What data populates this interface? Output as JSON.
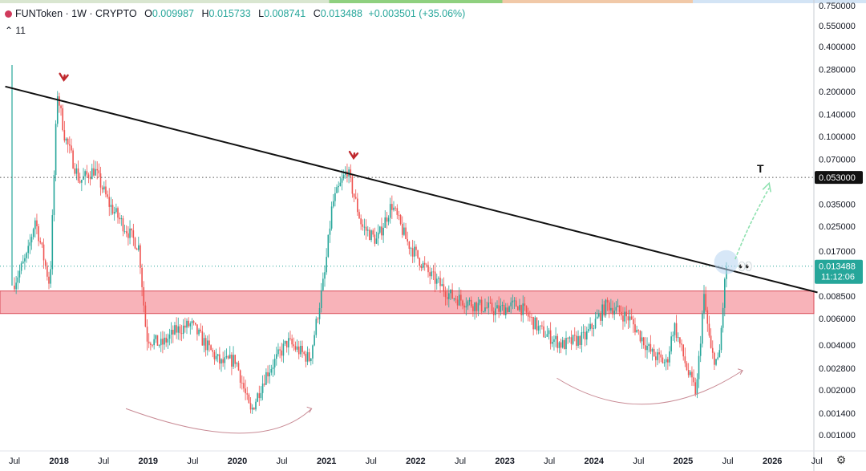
{
  "header": {
    "symbol_line": "FUNToken · 1W · CRYPTO",
    "open_label": "O",
    "open": "0.009987",
    "high_label": "H",
    "high": "0.015733",
    "low_label": "L",
    "low": "0.008741",
    "close_label": "C",
    "close": "0.013488",
    "change": "+0.003501 (+35.06%)",
    "indicator_count": "11"
  },
  "colors": {
    "up": "#26a69a",
    "down": "#ef5350",
    "zone": "#f7a6ad",
    "arrow": "#c0282d",
    "target": "#2ea58c"
  },
  "annotations": {
    "target_label": "T",
    "emoji": "👀"
  },
  "axis": {
    "settings_icon": "gear-icon"
  },
  "chart_data": {
    "type": "candlestick",
    "scale": "log",
    "ylim": [
      0.0008,
      0.75
    ],
    "y_ticks": [
      "0.750000",
      "0.550000",
      "0.400000",
      "0.280000",
      "0.200000",
      "0.140000",
      "0.100000",
      "0.070000",
      "0.053000",
      "0.035000",
      "0.025000",
      "0.017000",
      "0.013488",
      "0.008500",
      "0.006000",
      "0.004000",
      "0.002800",
      "0.002000",
      "0.001400",
      "0.001000"
    ],
    "y_tick_values": [
      0.75,
      0.55,
      0.4,
      0.28,
      0.2,
      0.14,
      0.1,
      0.07,
      0.053,
      0.035,
      0.025,
      0.017,
      0.013488,
      0.0085,
      0.006,
      0.004,
      0.0028,
      0.002,
      0.0014,
      0.001
    ],
    "x_ticks": [
      "Jul",
      "2018",
      "Jul",
      "2019",
      "Jul",
      "2020",
      "Jul",
      "2021",
      "Jul",
      "2022",
      "Jul",
      "2023",
      "Jul",
      "2024",
      "Jul",
      "2025",
      "Jul",
      "2026",
      "Jul"
    ],
    "x_tick_dates": [
      "2017-07",
      "2018-01",
      "2018-07",
      "2019-01",
      "2019-07",
      "2020-01",
      "2020-07",
      "2021-01",
      "2021-07",
      "2022-01",
      "2022-07",
      "2023-01",
      "2023-07",
      "2024-01",
      "2024-07",
      "2025-01",
      "2025-07",
      "2026-01",
      "2026-07"
    ],
    "price_points": [
      [
        "2017-07",
        0.01
      ],
      [
        "2017-09",
        0.016
      ],
      [
        "2017-10",
        0.028
      ],
      [
        "2017-12",
        0.01
      ],
      [
        "2018-01",
        0.2
      ],
      [
        "2018-02",
        0.1
      ],
      [
        "2018-04",
        0.05
      ],
      [
        "2018-06",
        0.06
      ],
      [
        "2018-08",
        0.035
      ],
      [
        "2018-10",
        0.025
      ],
      [
        "2018-12",
        0.018
      ],
      [
        "2019-01",
        0.0045
      ],
      [
        "2019-03",
        0.004
      ],
      [
        "2019-05",
        0.005
      ],
      [
        "2019-07",
        0.0055
      ],
      [
        "2019-09",
        0.004
      ],
      [
        "2019-11",
        0.003
      ],
      [
        "2020-01",
        0.0032
      ],
      [
        "2020-03",
        0.0014
      ],
      [
        "2020-05",
        0.0025
      ],
      [
        "2020-08",
        0.0042
      ],
      [
        "2020-11",
        0.0032
      ],
      [
        "2021-01",
        0.012
      ],
      [
        "2021-02",
        0.035
      ],
      [
        "2021-04",
        0.06
      ],
      [
        "2021-06",
        0.025
      ],
      [
        "2021-08",
        0.02
      ],
      [
        "2021-10",
        0.035
      ],
      [
        "2021-12",
        0.02
      ],
      [
        "2022-03",
        0.012
      ],
      [
        "2022-06",
        0.0085
      ],
      [
        "2022-09",
        0.0075
      ],
      [
        "2022-12",
        0.0068
      ],
      [
        "2023-03",
        0.0075
      ],
      [
        "2023-06",
        0.005
      ],
      [
        "2023-09",
        0.004
      ],
      [
        "2023-12",
        0.0045
      ],
      [
        "2024-03",
        0.0075
      ],
      [
        "2024-06",
        0.006
      ],
      [
        "2024-09",
        0.0035
      ],
      [
        "2024-11",
        0.003
      ],
      [
        "2024-12",
        0.0055
      ],
      [
        "2025-02",
        0.0025
      ],
      [
        "2025-03",
        0.0019
      ],
      [
        "2025-04",
        0.0085
      ],
      [
        "2025-05",
        0.0035
      ],
      [
        "2025-06",
        0.003
      ],
      [
        "2025-07",
        0.0135
      ]
    ],
    "trendline": {
      "start": [
        "2017-09",
        0.2
      ],
      "end": [
        "2026-06",
        0.009
      ]
    },
    "support_zone": [
      0.0065,
      0.0092
    ],
    "level_line": 0.053,
    "current_price": 0.013488,
    "current_price_label": "0.013488",
    "countdown": "11:12:06",
    "level_label": "0.053000",
    "peak_markers": [
      [
        "2018-01",
        0.2
      ],
      [
        "2021-04",
        0.06
      ]
    ],
    "curves": [
      {
        "from": [
          "2018-10",
          0.0015
        ],
        "mid": [
          "2020-04",
          0.0009
        ],
        "to": [
          "2020-11",
          0.0015
        ]
      },
      {
        "from": [
          "2023-08",
          0.0024
        ],
        "mid": [
          "2024-08",
          0.0013
        ],
        "to": [
          "2025-09",
          0.0027
        ]
      }
    ]
  }
}
